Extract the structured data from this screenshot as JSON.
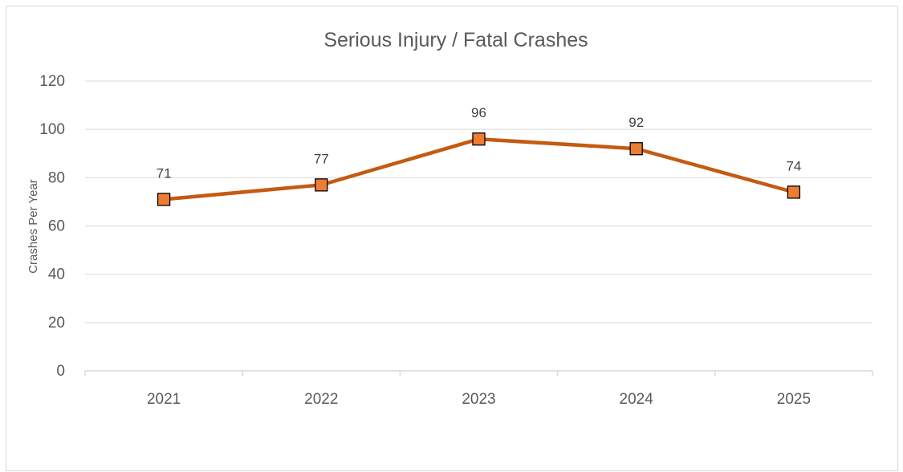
{
  "chart_data": {
    "type": "line",
    "title": "Serious Injury / Fatal Crashes",
    "xlabel": "",
    "ylabel": "Crashes Per Year",
    "categories": [
      "2021",
      "2022",
      "2023",
      "2024",
      "2025"
    ],
    "series": [
      {
        "values": [
          71,
          77,
          96,
          92,
          74
        ],
        "data_labels": [
          "71",
          "77",
          "96",
          "92",
          "74"
        ],
        "line_color": "#c55a11",
        "marker": "square",
        "marker_fill": "#ed7d31",
        "marker_edge": "#000000"
      }
    ],
    "ylim": [
      0,
      120
    ],
    "y_ticks": [
      0,
      20,
      40,
      60,
      80,
      100,
      120
    ],
    "y_tick_labels": [
      "0",
      "20",
      "40",
      "60",
      "80",
      "100",
      "120"
    ],
    "grid": true,
    "legend": "none",
    "gridline_color": "#d9d9d9",
    "text_color": "#595959"
  }
}
